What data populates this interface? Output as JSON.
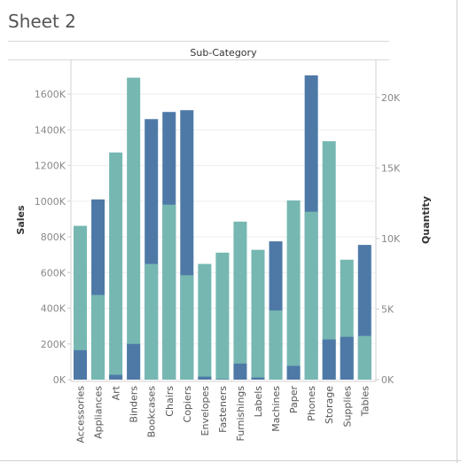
{
  "sheet": {
    "title": "Sheet 2"
  },
  "colors": {
    "quantity": "#76b7b2",
    "sales": "#4e79a7",
    "grid": "#ededed",
    "axis_text": "#888888"
  },
  "chart_data": {
    "type": "bar",
    "title": "Sub-Category",
    "ylabel": "Sales",
    "y2label": "Quantity",
    "categories": [
      "Accessories",
      "Appliances",
      "Art",
      "Binders",
      "Bookcases",
      "Chairs",
      "Copiers",
      "Envelopes",
      "Fasteners",
      "Furnishings",
      "Labels",
      "Machines",
      "Paper",
      "Phones",
      "Storage",
      "Supplies",
      "Tables"
    ],
    "y_ticks": [
      "0K",
      "200K",
      "400K",
      "600K",
      "800K",
      "1000K",
      "1200K",
      "1400K",
      "1600K"
    ],
    "y2_ticks": [
      "0K",
      "5K",
      "10K",
      "15K",
      "20K"
    ],
    "ylim": [
      0,
      1700000
    ],
    "y2lim": [
      0,
      21500
    ],
    "series": [
      {
        "name": "Sales",
        "axis": "left",
        "values": [
          165000,
          1010000,
          27000,
          200000,
          1460000,
          1500000,
          1510000,
          17000,
          3000,
          90000,
          12000,
          775000,
          77000,
          1705000,
          225000,
          240000,
          755000
        ]
      },
      {
        "name": "Quantity",
        "axis": "right",
        "values": [
          10900,
          6000,
          16100,
          21400,
          8200,
          12400,
          7400,
          8200,
          9000,
          11200,
          9200,
          4900,
          12700,
          11900,
          16900,
          8500,
          3100
        ]
      }
    ]
  }
}
